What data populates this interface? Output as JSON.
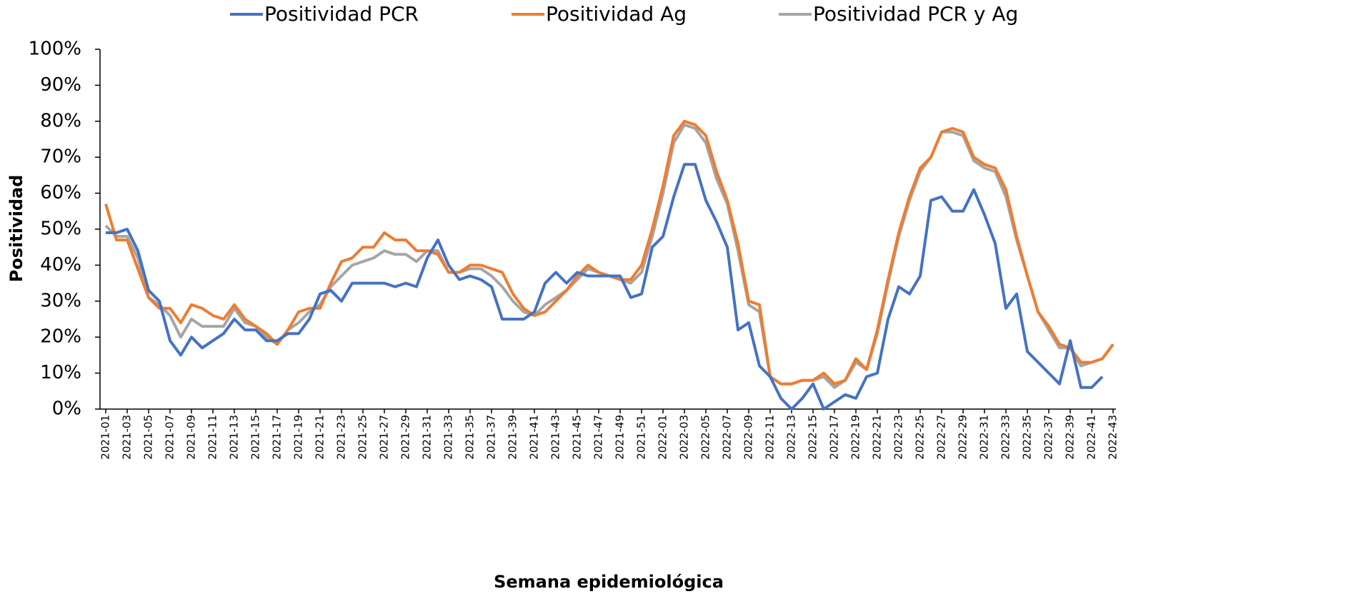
{
  "chart_data": {
    "type": "line",
    "x_label": "Semana epidemiológica",
    "y_label": "Positividad",
    "categories": [
      "2021-01",
      null,
      "2021-03",
      null,
      "2021-05",
      null,
      "2021-07",
      null,
      "2021-09",
      null,
      "2021-11",
      null,
      "2021-13",
      null,
      "2021-15",
      null,
      "2021-17",
      null,
      "2021-19",
      null,
      "2021-21",
      null,
      "2021-23",
      null,
      "2021-25",
      null,
      "2021-27",
      null,
      "2021-29",
      null,
      "2021-31",
      null,
      "2021-33",
      null,
      "2021-35",
      null,
      "2021-37",
      null,
      "2021-39",
      null,
      "2021-41",
      null,
      "2021-43",
      null,
      "2021-45",
      null,
      "2021-47",
      null,
      "2021-49",
      null,
      "2021-51",
      null,
      "2022-01",
      null,
      "2022-03",
      null,
      "2022-05",
      null,
      "2022-07",
      null,
      "2022-09",
      null,
      "2022-11",
      null,
      "2022-13",
      null,
      "2022-15",
      null,
      "2022-17",
      null,
      "2022-19",
      null,
      "2022-21",
      null,
      "2022-23",
      null,
      "2022-25",
      null,
      "2022-27",
      null,
      "2022-29",
      null,
      "2022-31",
      null,
      "2022-33",
      null,
      "2022-35",
      null,
      "2022-37",
      null,
      "2022-39",
      null,
      "2022-41",
      null,
      "2022-43"
    ],
    "series": [
      {
        "name": "Positividad PCR",
        "color": "#4472c4",
        "values": [
          49,
          49,
          50,
          44,
          33,
          30,
          19,
          15,
          20,
          17,
          19,
          21,
          25,
          22,
          22,
          19,
          19,
          21,
          21,
          25,
          32,
          33,
          30,
          35,
          35,
          35,
          35,
          34,
          35,
          34,
          42,
          47,
          40,
          36,
          37,
          36,
          34,
          25,
          25,
          25,
          27,
          35,
          38,
          35,
          38,
          37,
          37,
          37,
          37,
          31,
          32,
          45,
          48,
          59,
          68,
          68,
          58,
          52,
          45,
          22,
          24,
          12,
          9,
          3,
          0,
          3,
          7,
          0,
          2,
          4,
          3,
          9,
          10,
          25,
          34,
          32,
          37,
          58,
          59,
          55,
          55,
          61,
          54,
          46,
          28,
          32,
          16,
          13,
          10,
          7,
          19,
          6,
          6,
          9,
          null
        ]
      },
      {
        "name": "Positividad Ag",
        "color": "#ed7d31",
        "values": [
          57,
          47,
          47,
          39,
          31,
          28,
          28,
          24,
          29,
          28,
          26,
          25,
          29,
          25,
          23,
          21,
          18,
          22,
          27,
          28,
          28,
          35,
          41,
          42,
          45,
          45,
          49,
          47,
          47,
          44,
          44,
          43,
          38,
          38,
          40,
          40,
          39,
          38,
          32,
          28,
          26,
          27,
          30,
          33,
          37,
          40,
          38,
          37,
          36,
          36,
          40,
          50,
          62,
          76,
          80,
          79,
          76,
          66,
          58,
          46,
          30,
          29,
          9,
          7,
          7,
          8,
          8,
          10,
          7,
          8,
          14,
          11,
          22,
          36,
          49,
          59,
          67,
          70,
          77,
          78,
          77,
          70,
          68,
          67,
          61,
          48,
          37,
          27,
          23,
          18,
          17,
          13,
          13,
          14,
          18
        ]
      },
      {
        "name": "Positividad PCR y Ag",
        "color": "#a5a5a5",
        "values": [
          51,
          48,
          48,
          42,
          31,
          29,
          26,
          20,
          25,
          23,
          23,
          23,
          28,
          24,
          23,
          20,
          18,
          22,
          24,
          27,
          29,
          34,
          37,
          40,
          41,
          42,
          44,
          43,
          43,
          41,
          44,
          44,
          38,
          38,
          39,
          39,
          37,
          34,
          30,
          27,
          26,
          29,
          31,
          33,
          36,
          39,
          38,
          37,
          36,
          35,
          38,
          48,
          60,
          74,
          79,
          78,
          74,
          64,
          57,
          44,
          29,
          27,
          9,
          7,
          7,
          8,
          8,
          9,
          6,
          8,
          13,
          11,
          21,
          35,
          48,
          58,
          66,
          70,
          77,
          77,
          76,
          69,
          67,
          66,
          59,
          47,
          37,
          27,
          22,
          17,
          17,
          12,
          13,
          14,
          18
        ]
      }
    ],
    "ylim": [
      0,
      100
    ],
    "yticks": [
      {
        "value": 0,
        "label": "0%"
      },
      {
        "value": 10,
        "label": "10%"
      },
      {
        "value": 20,
        "label": "20%"
      },
      {
        "value": 30,
        "label": "30%"
      },
      {
        "value": 40,
        "label": "40%"
      },
      {
        "value": 50,
        "label": "50%"
      },
      {
        "value": 60,
        "label": "60%"
      },
      {
        "value": 70,
        "label": "70%"
      },
      {
        "value": 80,
        "label": "80%"
      },
      {
        "value": 90,
        "label": "90%"
      },
      {
        "value": 100,
        "label": "100%"
      }
    ],
    "grid": false,
    "legend": "top"
  }
}
